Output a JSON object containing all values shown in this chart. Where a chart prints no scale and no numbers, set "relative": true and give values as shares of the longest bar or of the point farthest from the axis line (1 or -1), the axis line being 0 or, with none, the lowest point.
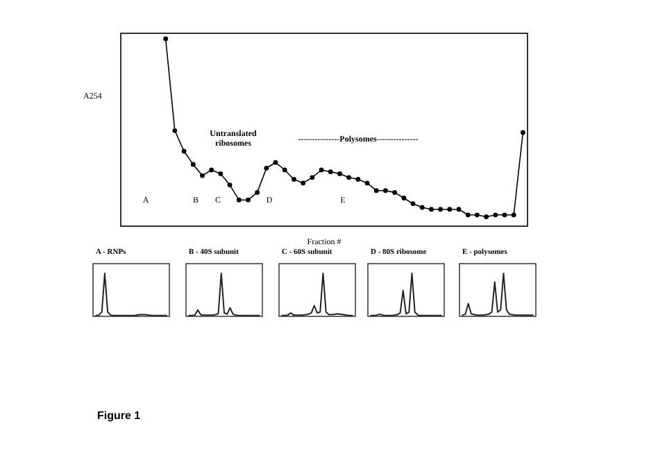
{
  "chart_data": [
    {
      "type": "line",
      "xlabel": "Fraction #",
      "ylabel": "A254",
      "relative": true,
      "marker": "circle",
      "color": "#000000",
      "categories": [
        null,
        null,
        null,
        null,
        null,
        null,
        null,
        null,
        null,
        null,
        null,
        null,
        null,
        null,
        null,
        null,
        null,
        null,
        null,
        null,
        null,
        null,
        null,
        null,
        null,
        null,
        null,
        null,
        null,
        null,
        null,
        null,
        null,
        null,
        null,
        null,
        null,
        null,
        null,
        null
      ],
      "values": [
        1.0,
        0.51,
        0.4,
        0.33,
        0.27,
        0.3,
        0.28,
        0.22,
        0.14,
        0.14,
        0.18,
        0.31,
        0.34,
        0.3,
        0.25,
        0.23,
        0.26,
        0.3,
        0.29,
        0.28,
        0.26,
        0.25,
        0.23,
        0.19,
        0.19,
        0.18,
        0.15,
        0.12,
        0.1,
        0.09,
        0.09,
        0.09,
        0.09,
        0.06,
        0.06,
        0.05,
        0.06,
        0.06,
        0.06,
        0.5
      ],
      "annotations": [
        "A",
        "B",
        "C",
        "D",
        "E",
        "Untranslated ribosomes",
        "---------------Polysomes---------------",
        "Figure 1"
      ]
    },
    {
      "type": "line",
      "title": "A - RNPs",
      "relative": true,
      "categories": [
        null,
        null,
        null,
        null,
        null,
        null,
        null,
        null,
        null,
        null,
        null,
        null,
        null,
        null,
        null,
        null,
        null,
        null,
        null,
        null,
        null,
        null,
        null,
        null,
        null
      ],
      "series": [
        {
          "color": "#222222",
          "values": [
            0.02,
            0.03,
            0.1,
            1.0,
            0.1,
            0.03,
            0.02,
            0.02,
            0.02,
            0.02,
            0.02,
            0.02,
            0.02,
            0.02,
            0.03,
            0.04,
            0.04,
            0.04,
            0.03,
            0.02,
            0.02,
            0.02,
            0.02,
            0.02,
            0.02
          ]
        }
      ]
    },
    {
      "type": "line",
      "title": "B - 40S subunit",
      "relative": true,
      "categories": [
        null,
        null,
        null,
        null,
        null,
        null,
        null,
        null,
        null,
        null,
        null,
        null,
        null,
        null,
        null,
        null,
        null,
        null,
        null,
        null,
        null,
        null,
        null,
        null,
        null
      ],
      "series": [
        {
          "color": "#222222",
          "values": [
            0.02,
            0.02,
            0.03,
            0.15,
            0.04,
            0.03,
            0.03,
            0.03,
            0.03,
            0.04,
            0.06,
            1.0,
            0.08,
            0.05,
            0.2,
            0.05,
            0.03,
            0.02,
            0.02,
            0.02,
            0.02,
            0.02,
            0.02,
            0.02,
            0.02
          ]
        }
      ]
    },
    {
      "type": "line",
      "title": "C - 60S subunit",
      "relative": true,
      "categories": [
        null,
        null,
        null,
        null,
        null,
        null,
        null,
        null,
        null,
        null,
        null,
        null,
        null,
        null,
        null,
        null,
        null,
        null,
        null,
        null,
        null,
        null,
        null,
        null,
        null
      ],
      "series": [
        {
          "color": "#222222",
          "values": [
            0.02,
            0.02,
            0.03,
            0.08,
            0.03,
            0.03,
            0.03,
            0.03,
            0.04,
            0.05,
            0.08,
            0.25,
            0.08,
            0.1,
            1.0,
            0.1,
            0.04,
            0.04,
            0.05,
            0.06,
            0.05,
            0.04,
            0.03,
            0.02,
            0.02
          ]
        }
      ]
    },
    {
      "type": "line",
      "title": "D - 80S ribosome",
      "relative": true,
      "categories": [
        null,
        null,
        null,
        null,
        null,
        null,
        null,
        null,
        null,
        null,
        null,
        null,
        null,
        null,
        null,
        null,
        null,
        null,
        null,
        null,
        null,
        null,
        null,
        null,
        null
      ],
      "series": [
        {
          "color": "#222222",
          "values": [
            0.02,
            0.02,
            0.03,
            0.05,
            0.03,
            0.02,
            0.02,
            0.02,
            0.03,
            0.04,
            0.08,
            0.6,
            0.06,
            0.1,
            1.0,
            0.1,
            0.03,
            0.02,
            0.02,
            0.02,
            0.02,
            0.02,
            0.02,
            0.02,
            0.02
          ]
        }
      ]
    },
    {
      "type": "line",
      "title": "E - polysomes",
      "relative": true,
      "categories": [
        null,
        null,
        null,
        null,
        null,
        null,
        null,
        null,
        null,
        null,
        null,
        null,
        null,
        null,
        null,
        null,
        null,
        null,
        null,
        null,
        null,
        null,
        null,
        null,
        null
      ],
      "series": [
        {
          "color": "#222222",
          "values": [
            0.03,
            0.05,
            0.3,
            0.06,
            0.04,
            0.03,
            0.03,
            0.03,
            0.04,
            0.05,
            0.1,
            0.8,
            0.1,
            0.15,
            1.0,
            0.15,
            0.05,
            0.04,
            0.03,
            0.03,
            0.03,
            0.03,
            0.03,
            0.03,
            0.03
          ]
        }
      ]
    }
  ]
}
